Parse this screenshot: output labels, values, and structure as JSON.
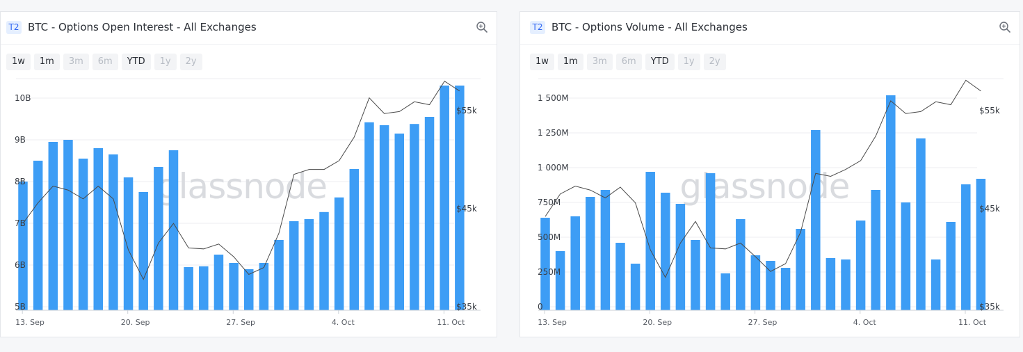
{
  "colors": {
    "bar": "#3d9df5",
    "price_line": "#4a4a4a",
    "grid": "#eceef1",
    "watermark": "#d9dbdf"
  },
  "watermark": "glassnode",
  "ranges": [
    {
      "label": "1w",
      "enabled": true
    },
    {
      "label": "1m",
      "enabled": true
    },
    {
      "label": "3m",
      "enabled": false
    },
    {
      "label": "6m",
      "enabled": false
    },
    {
      "label": "YTD",
      "enabled": true
    },
    {
      "label": "1y",
      "enabled": false
    },
    {
      "label": "2y",
      "enabled": false
    }
  ],
  "cards": [
    {
      "tier": "T2",
      "title": "BTC - Options Open Interest - All Exchanges",
      "icons": {
        "zoom": "zoom-in-icon"
      }
    },
    {
      "tier": "T2",
      "title": "BTC - Options Volume - All Exchanges",
      "icons": {
        "zoom": "zoom-in-icon"
      }
    }
  ],
  "chart_data": [
    {
      "type": "bar",
      "title": "BTC - Options Open Interest - All Exchanges",
      "x_labels": [
        "13. Sep",
        "20. Sep",
        "27. Sep",
        "4. Oct",
        "11. Oct"
      ],
      "x_label_index": [
        0,
        7,
        14,
        21,
        28
      ],
      "y_ticks": [
        "5B",
        "6B",
        "7B",
        "8B",
        "9B",
        "10B"
      ],
      "y_tick_values": [
        5,
        6,
        7,
        8,
        9,
        10
      ],
      "ylim": [
        5,
        10.5
      ],
      "y2_ticks": [
        "$35k",
        "$45k",
        "$55k"
      ],
      "y2_tick_values": [
        35,
        45,
        55
      ],
      "y2lim": [
        35,
        57
      ],
      "grid": true,
      "series": [
        {
          "type": "bar",
          "unit": "B",
          "values": [
            8.0,
            8.5,
            8.95,
            9.0,
            8.55,
            8.8,
            8.65,
            8.1,
            7.75,
            8.35,
            8.75,
            5.95,
            5.97,
            6.25,
            6.05,
            5.9,
            6.05,
            6.6,
            7.05,
            7.1,
            7.27,
            7.62,
            8.3,
            9.42,
            9.35,
            9.15,
            9.38,
            9.55,
            10.3,
            10.3
          ]
        },
        {
          "type": "line",
          "unit": "k USD",
          "values": [
            43.5,
            45.6,
            47.3,
            46.9,
            46.0,
            47.3,
            46.0,
            40.8,
            37.8,
            41.5,
            43.5,
            41.0,
            40.9,
            41.4,
            40.1,
            38.3,
            39.0,
            42.5,
            48.5,
            49.0,
            49.0,
            49.9,
            52.3,
            56.3,
            54.7,
            54.9,
            55.9,
            55.6,
            58.0,
            57.0
          ]
        }
      ]
    },
    {
      "type": "bar",
      "title": "BTC - Options Volume - All Exchanges",
      "x_labels": [
        "13. Sep",
        "20. Sep",
        "27. Sep",
        "4. Oct",
        "11. Oct"
      ],
      "x_label_index": [
        0,
        7,
        14,
        21,
        28
      ],
      "y_ticks": [
        "0",
        "250M",
        "500M",
        "750M",
        "1 000M",
        "1 250M",
        "1 500M"
      ],
      "y_tick_values": [
        0,
        250,
        500,
        750,
        1000,
        1250,
        1500
      ],
      "ylim": [
        0,
        1550
      ],
      "y2_ticks": [
        "$35k",
        "$45k",
        "$55k"
      ],
      "y2_tick_values": [
        35,
        45,
        55
      ],
      "y2lim": [
        35,
        57
      ],
      "grid": true,
      "series": [
        {
          "type": "bar",
          "unit": "M",
          "values": [
            640,
            400,
            650,
            790,
            840,
            460,
            310,
            970,
            820,
            740,
            480,
            960,
            240,
            630,
            370,
            330,
            280,
            560,
            1270,
            350,
            340,
            620,
            840,
            1520,
            750,
            1210,
            340,
            610,
            880,
            920
          ]
        },
        {
          "type": "line",
          "unit": "k USD",
          "values": [
            44.2,
            46.5,
            47.3,
            46.9,
            46.1,
            47.2,
            45.6,
            40.8,
            38.0,
            41.5,
            43.7,
            41.0,
            40.9,
            41.5,
            40.1,
            38.6,
            39.4,
            42.6,
            48.6,
            48.3,
            49.0,
            49.9,
            52.4,
            56.0,
            54.7,
            54.9,
            55.9,
            55.6,
            58.1,
            57.0
          ]
        }
      ]
    }
  ]
}
